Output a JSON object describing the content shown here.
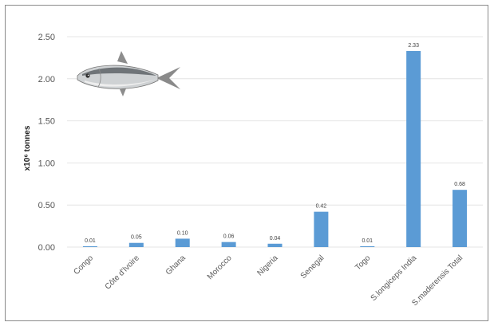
{
  "chart_data": {
    "type": "bar",
    "title": "",
    "xlabel": "",
    "ylabel": "x10⁶ tonnes",
    "ylim": [
      0,
      2.5
    ],
    "yticks": [
      0,
      0.5,
      1.0,
      1.5,
      2.0,
      2.5
    ],
    "ytick_labels": [
      "0.00",
      "0.50",
      "1.00",
      "1.50",
      "2.00",
      "2.50"
    ],
    "categories": [
      "Congo",
      "Côte d'Ivoire",
      "Ghana",
      "Morocco",
      "Nigeria",
      "Senegal",
      "Togo",
      "S.longiceps India",
      "S.maderensis Total"
    ],
    "values": [
      0.01,
      0.05,
      0.1,
      0.06,
      0.04,
      0.42,
      0.01,
      2.33,
      0.68
    ],
    "value_labels": [
      "0.01",
      "0.05",
      "0.10",
      "0.06",
      "0.04",
      "0.42",
      "0.01",
      "2.33",
      "0.68"
    ],
    "bar_color": "#5b9bd5",
    "grid": true,
    "grid_color": "#e4e4e4",
    "legend": "none"
  },
  "illustration": {
    "icon": "sardine-fish-icon"
  }
}
